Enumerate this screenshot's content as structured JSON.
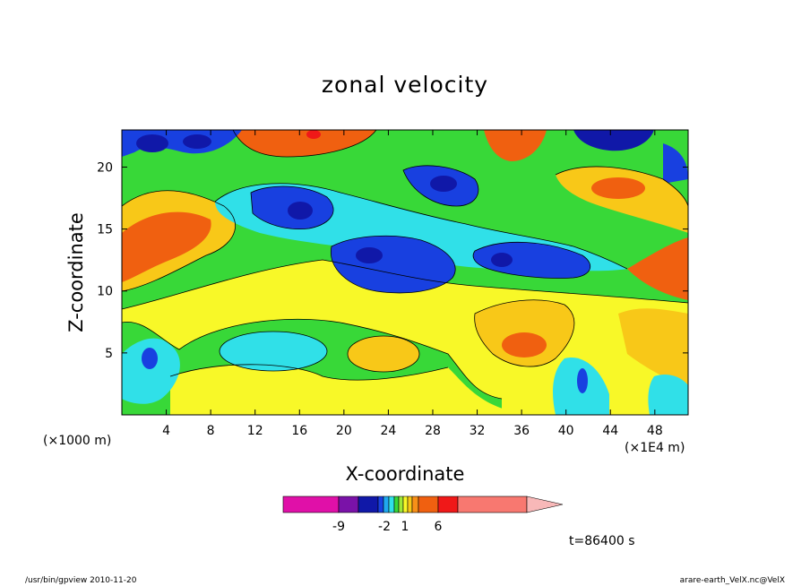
{
  "chart_data": {
    "type": "heatmap",
    "title": "zonal velocity",
    "xlabel": "X-coordinate",
    "ylabel": "Z-coordinate",
    "x_unit_left": "(×1000 m)",
    "x_unit_right": "(×1E4 m)",
    "x_ticks": [
      "4",
      "8",
      "12",
      "16",
      "20",
      "24",
      "28",
      "32",
      "36",
      "40",
      "44",
      "48"
    ],
    "y_ticks": [
      "5",
      "10",
      "15",
      "20"
    ],
    "xlim": [
      0,
      51
    ],
    "ylim": [
      0,
      23
    ],
    "colorbar": {
      "tick_labels": [
        "-9",
        "-2",
        "1",
        "6"
      ],
      "colors": [
        "#e010a8",
        "#7a12a8",
        "#1018a8",
        "#1840e0",
        "#20a8f0",
        "#30e0e8",
        "#38d838",
        "#a0e838",
        "#f8f828",
        "#f8c818",
        "#f89018",
        "#f06010",
        "#f01818",
        "#f87870",
        "#f8b8b8"
      ]
    },
    "time_label": "t=86400 s",
    "footer_left": "/usr/bin/gpview   2010-11-20",
    "footer_right": "arare-earth_VelX.nc@VelX"
  }
}
